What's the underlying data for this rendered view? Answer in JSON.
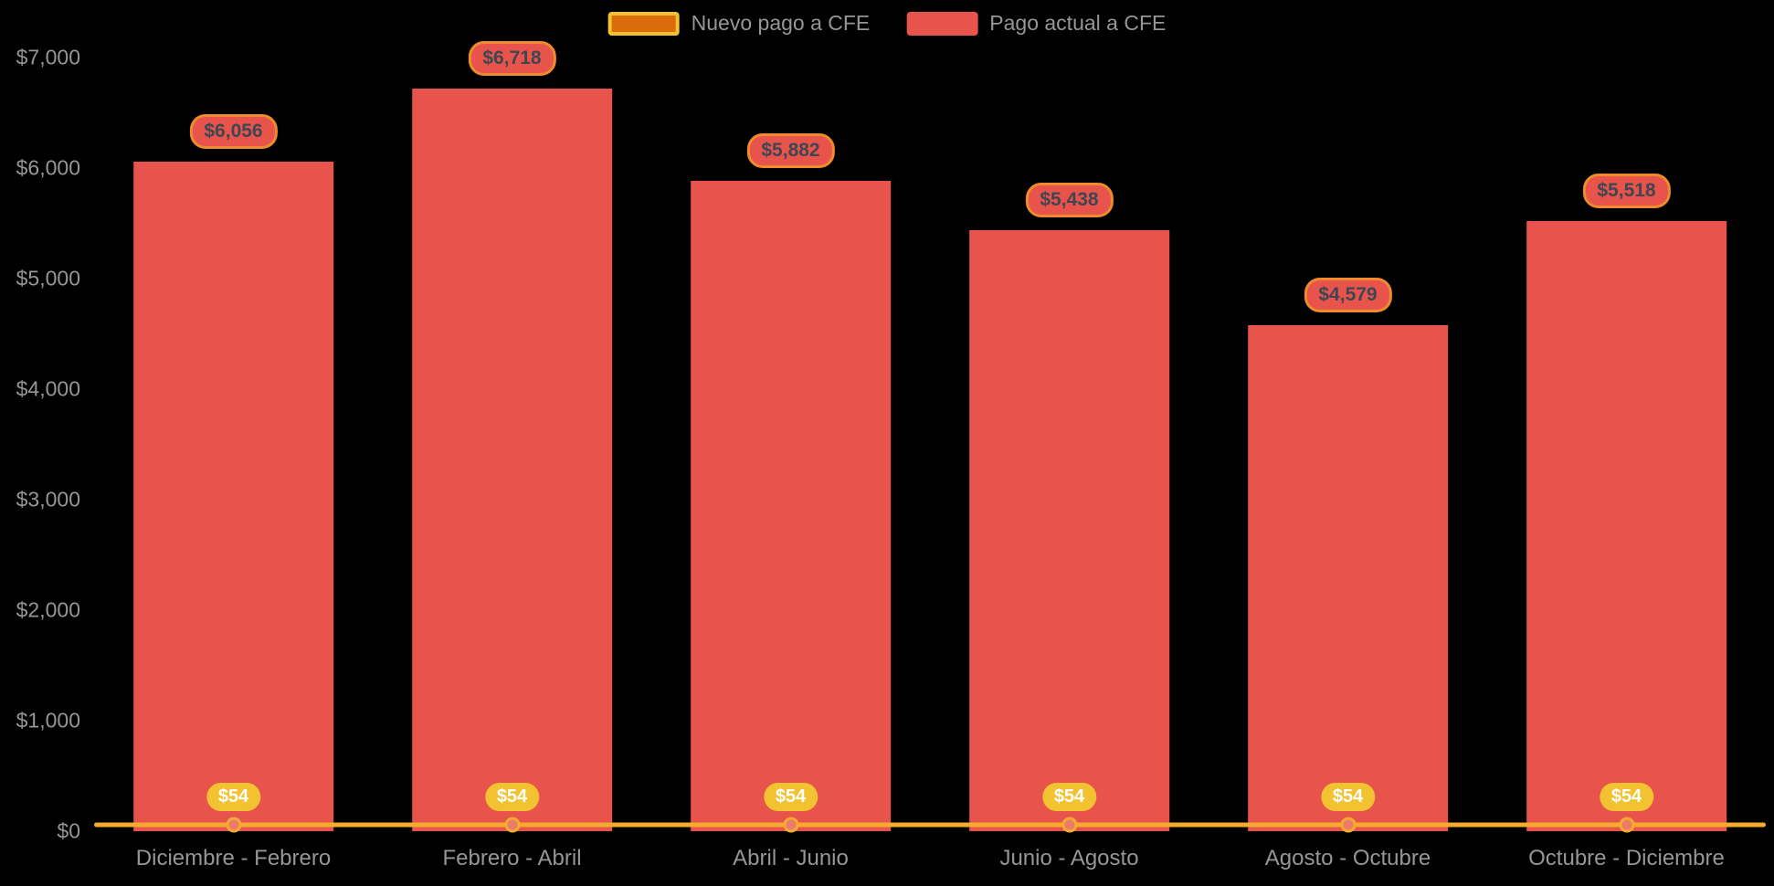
{
  "legend": {
    "items": [
      {
        "label": "Nuevo pago a CFE"
      },
      {
        "label": "Pago actual a CFE"
      }
    ]
  },
  "y_axis": {
    "max": 7000,
    "ticks": [
      {
        "label": "$0",
        "value": 0
      },
      {
        "label": "$1,000",
        "value": 1000
      },
      {
        "label": "$2,000",
        "value": 2000
      },
      {
        "label": "$3,000",
        "value": 3000
      },
      {
        "label": "$4,000",
        "value": 4000
      },
      {
        "label": "$5,000",
        "value": 5000
      },
      {
        "label": "$6,000",
        "value": 6000
      },
      {
        "label": "$7,000",
        "value": 7000
      }
    ]
  },
  "chart_data": {
    "type": "bar",
    "title": "",
    "xlabel": "",
    "ylabel": "",
    "ylim": [
      0,
      7000
    ],
    "grid": false,
    "legend_position": "top",
    "categories": [
      "Diciembre - Febrero",
      "Febrero - Abril",
      "Abril - Junio",
      "Junio - Agosto",
      "Agosto - Octubre",
      "Octubre - Diciembre"
    ],
    "series": [
      {
        "name": "Nuevo pago a CFE",
        "render": "line",
        "color": "#F5AC2E",
        "values": [
          54,
          54,
          54,
          54,
          54,
          54
        ],
        "labels": [
          "$54",
          "$54",
          "$54",
          "$54",
          "$54",
          "$54"
        ]
      },
      {
        "name": "Pago actual a CFE",
        "render": "bar",
        "color": "#E8544B",
        "values": [
          6056,
          6718,
          5882,
          5438,
          4579,
          5518
        ],
        "labels": [
          "$6,056",
          "$6,718",
          "$5,882",
          "$5,438",
          "$4,579",
          "$5,518"
        ]
      }
    ]
  },
  "colors": {
    "background": "#000000",
    "bar": "#E8544B",
    "line": "#F5AC2E",
    "point_fill": "#EE7A6C",
    "swatch_nuevo": "#DB6B0B",
    "bar_label_bg": "#E8544B",
    "bar_label_border": "#EE8B2C",
    "bar_label_text": "#3F4652",
    "point_label_bg": "#F2C230",
    "point_label_text": "#FFFFFF",
    "axis_text": "#969696"
  }
}
